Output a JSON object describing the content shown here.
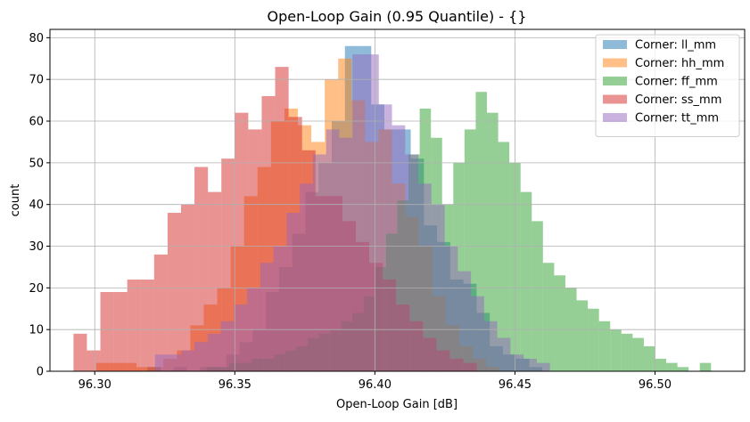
{
  "chart_data": {
    "type": "histogram",
    "title": "Open-Loop Gain (0.95 Quantile) - {}",
    "xlabel": "Open-Loop Gain [dB]",
    "ylabel": "count",
    "xlim": [
      96.284,
      96.532
    ],
    "ylim": [
      0,
      82
    ],
    "x_ticks": [
      96.3,
      96.35,
      96.4,
      96.45,
      96.5
    ],
    "x_tick_labels": [
      "96.30",
      "96.35",
      "96.40",
      "96.45",
      "96.50"
    ],
    "y_ticks": [
      0,
      10,
      20,
      30,
      40,
      50,
      60,
      70,
      80
    ],
    "y_tick_labels": [
      "0",
      "10",
      "20",
      "30",
      "40",
      "50",
      "60",
      "70",
      "80"
    ],
    "grid": true,
    "legend_position": "top-right",
    "series": [
      {
        "name": "Corner: ll_mm",
        "color": "#1f77b4",
        "bin_edges": [
          96.3188,
          96.3235,
          96.3282,
          96.3329,
          96.3376,
          96.3423,
          96.347,
          96.3517,
          96.3564,
          96.3611,
          96.3658,
          96.3705,
          96.3752,
          96.3799,
          96.3846,
          96.3893,
          96.394,
          96.3987,
          96.4034,
          96.4081,
          96.4128,
          96.4175,
          96.4222,
          96.4269,
          96.4316,
          96.4363,
          96.441,
          96.4457,
          96.4504,
          96.4551,
          96.4598
        ],
        "counts": [
          1,
          0,
          1,
          0,
          1,
          1,
          4,
          7,
          10,
          19,
          25,
          33,
          43,
          50,
          60,
          78,
          78,
          64,
          58,
          58,
          51,
          35,
          31,
          22,
          21,
          14,
          6,
          4,
          3,
          1
        ]
      },
      {
        "name": "Corner: hh_mm",
        "color": "#ff7f0e",
        "bin_edges": [
          96.3005,
          96.3053,
          96.3101,
          96.3149,
          96.3197,
          96.3245,
          96.3293,
          96.3341,
          96.3389,
          96.3437,
          96.3485,
          96.3533,
          96.3581,
          96.3629,
          96.3677,
          96.3725,
          96.3773,
          96.3821,
          96.3869,
          96.3917,
          96.3965,
          96.4013,
          96.4061,
          96.4109,
          96.4157,
          96.4205,
          96.4253,
          96.4301,
          96.4349,
          96.4397,
          96.4445
        ],
        "counts": [
          2,
          2,
          2,
          1,
          1,
          3,
          5,
          11,
          16,
          20,
          30,
          42,
          49,
          60,
          63,
          59,
          55,
          70,
          75,
          65,
          55,
          58,
          45,
          37,
          30,
          18,
          11,
          6,
          3,
          1
        ]
      },
      {
        "name": "Corner: ff_mm",
        "color": "#2ca02c",
        "bin_edges": [
          96.34,
          96.344,
          96.348,
          96.352,
          96.356,
          96.36,
          96.364,
          96.368,
          96.372,
          96.376,
          96.38,
          96.384,
          96.388,
          96.392,
          96.396,
          96.4,
          96.404,
          96.408,
          96.412,
          96.416,
          96.42,
          96.424,
          96.428,
          96.432,
          96.436,
          96.44,
          96.444,
          96.448,
          96.452,
          96.456,
          96.46,
          96.464,
          96.468,
          96.472,
          96.476,
          96.48,
          96.484,
          96.488,
          96.492,
          96.496,
          96.5,
          96.504,
          96.508,
          96.512,
          96.516,
          96.52
        ],
        "counts": [
          1,
          1,
          2,
          2,
          3,
          3,
          4,
          5,
          6,
          8,
          9,
          10,
          12,
          14,
          18,
          25,
          33,
          41,
          52,
          63,
          56,
          40,
          50,
          58,
          67,
          62,
          55,
          50,
          43,
          36,
          26,
          23,
          20,
          17,
          15,
          12,
          10,
          9,
          8,
          6,
          3,
          2,
          1,
          0,
          2
        ]
      },
      {
        "name": "Corner: ss_mm",
        "color": "#d62728",
        "bin_edges": [
          96.2924,
          96.2972,
          96.302,
          96.3068,
          96.3116,
          96.3164,
          96.3212,
          96.326,
          96.3308,
          96.3356,
          96.3404,
          96.3452,
          96.35,
          96.3548,
          96.3596,
          96.3644,
          96.3692,
          96.374,
          96.3788,
          96.3836,
          96.3884,
          96.3932,
          96.398,
          96.4028,
          96.4076,
          96.4124,
          96.4172,
          96.422,
          96.4268,
          96.4316,
          96.4364
        ],
        "counts": [
          9,
          5,
          19,
          19,
          22,
          22,
          28,
          38,
          40,
          49,
          43,
          51,
          62,
          58,
          66,
          73,
          61,
          53,
          42,
          42,
          36,
          31,
          26,
          22,
          16,
          12,
          8,
          5,
          3,
          2
        ]
      },
      {
        "name": "Corner: tt_mm",
        "color": "#9467bd",
        "bin_edges": [
          96.3215,
          96.3262,
          96.3309,
          96.3356,
          96.3403,
          96.345,
          96.3497,
          96.3544,
          96.3591,
          96.3638,
          96.3685,
          96.3732,
          96.3779,
          96.3826,
          96.3873,
          96.392,
          96.3967,
          96.4014,
          96.4061,
          96.4108,
          96.4155,
          96.4202,
          96.4249,
          96.4296,
          96.4343,
          96.439,
          96.4437,
          96.4484,
          96.4531,
          96.4578,
          96.4625
        ],
        "counts": [
          4,
          4,
          5,
          7,
          9,
          12,
          16,
          20,
          26,
          30,
          38,
          45,
          52,
          58,
          56,
          76,
          76,
          64,
          59,
          52,
          45,
          40,
          30,
          24,
          18,
          12,
          8,
          4,
          3,
          2
        ]
      }
    ]
  }
}
